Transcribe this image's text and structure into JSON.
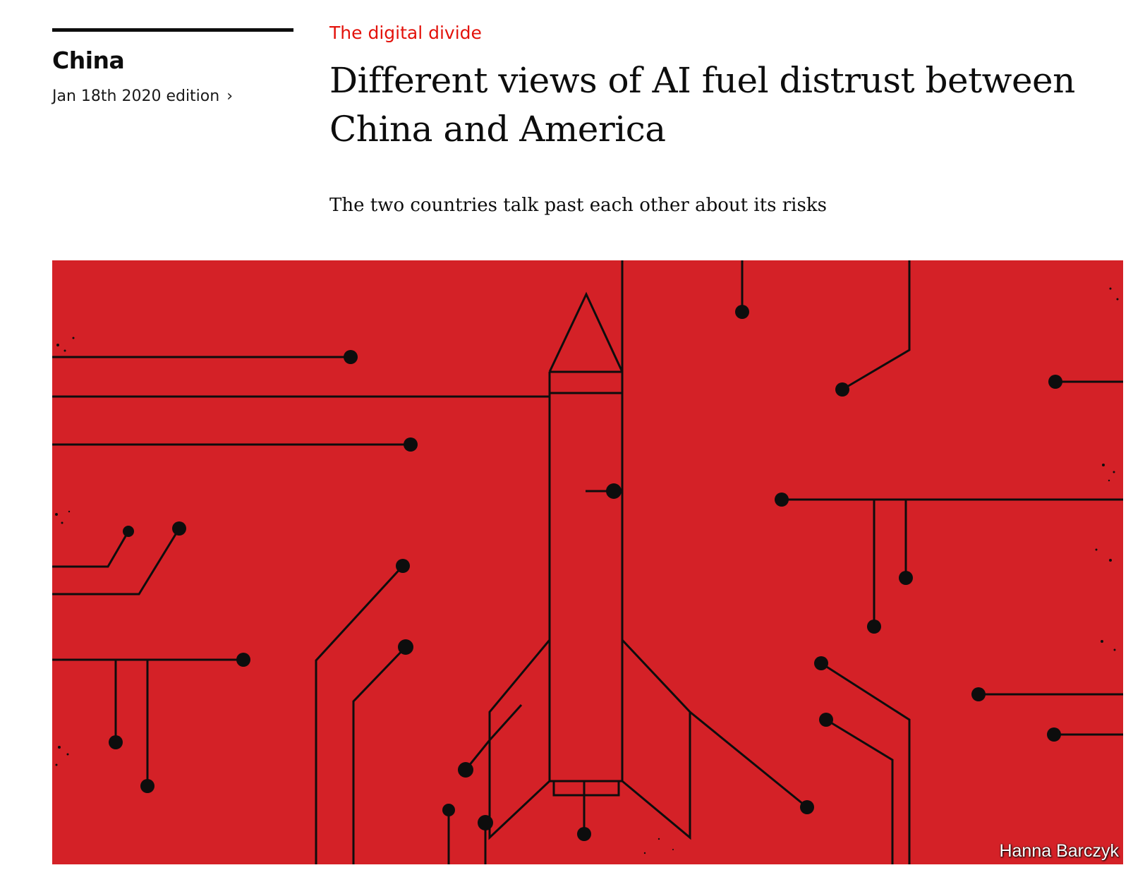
{
  "section": {
    "name": "China",
    "edition_label": "Jan 18th 2020 edition",
    "edition_chevron": "›"
  },
  "article": {
    "flytitle": "The digital divide",
    "headline": "Different views of AI fuel distrust between China and America",
    "subtitle": "The two countries talk past each other about its risks"
  },
  "image": {
    "credit": "Hanna Barczyk",
    "background_color": "#d42127",
    "line_color": "#0d0d0d"
  },
  "colors": {
    "accent": "#e3120b",
    "text": "#0d0d0d"
  }
}
